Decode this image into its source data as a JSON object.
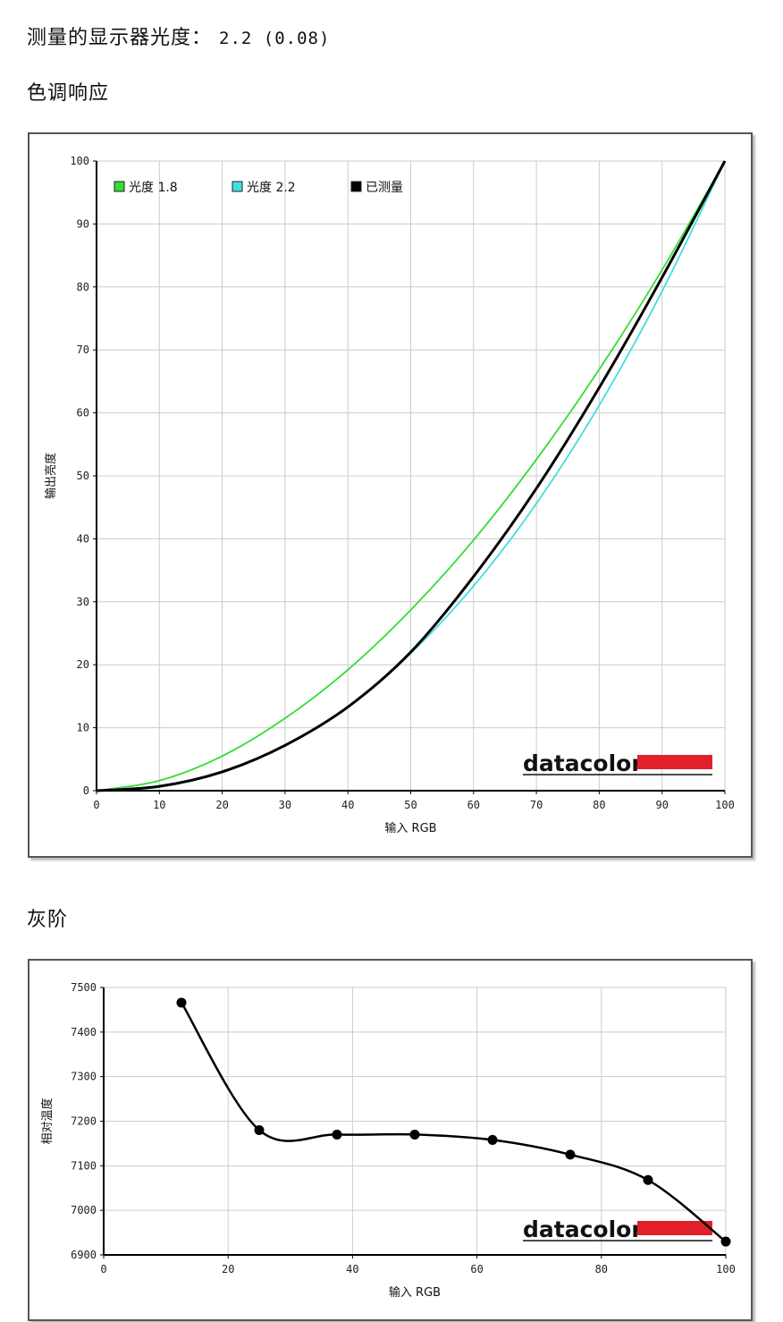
{
  "header": {
    "gamma_label": "测量的显示器光度：",
    "gamma_value": "2.2 (0.08)",
    "tone_title": "色调响应",
    "gray_title": "灰阶"
  },
  "colors": {
    "gamma18": "#33dd33",
    "gamma22": "#44dddd",
    "measured": "#000000",
    "grid": "#cccccc",
    "logo_bar": "#e2202a"
  },
  "chart_data": [
    {
      "type": "line",
      "xlabel": "输入 RGB",
      "ylabel": "输出亮度",
      "xlim": [
        0,
        100
      ],
      "ylim": [
        0,
        100
      ],
      "xticks": [
        0,
        10,
        20,
        30,
        40,
        50,
        60,
        70,
        80,
        90,
        100
      ],
      "yticks": [
        0,
        10,
        20,
        30,
        40,
        50,
        60,
        70,
        80,
        90,
        100
      ],
      "grid": true,
      "legend_position": "top-left",
      "logo_text": "datacolor",
      "series": [
        {
          "name": "光度 1.8",
          "color": "#33dd33",
          "x": [
            0,
            10,
            20,
            30,
            40,
            50,
            60,
            70,
            80,
            90,
            100
          ],
          "y": [
            0,
            1.6,
            5.5,
            11.5,
            19.2,
            28.7,
            39.8,
            52.6,
            66.9,
            82.7,
            100
          ]
        },
        {
          "name": "光度 2.2",
          "color": "#44dddd",
          "x": [
            0,
            10,
            20,
            30,
            40,
            50,
            60,
            70,
            80,
            90,
            100
          ],
          "y": [
            0,
            0.6,
            2.9,
            7.1,
            13.3,
            21.8,
            32.5,
            45.6,
            61.2,
            79.3,
            100
          ]
        },
        {
          "name": "已测量",
          "color": "#000000",
          "x": [
            0,
            10,
            20,
            30,
            40,
            50,
            60,
            70,
            80,
            90,
            100
          ],
          "y": [
            0,
            0.7,
            3.0,
            7.2,
            13.3,
            22.0,
            34.0,
            48.0,
            64.0,
            81.5,
            100
          ]
        }
      ]
    },
    {
      "type": "line",
      "xlabel": "输入 RGB",
      "ylabel": "相对温度",
      "xlim": [
        0,
        100
      ],
      "ylim": [
        6900,
        7500
      ],
      "xticks": [
        0,
        20,
        40,
        60,
        80,
        100
      ],
      "yticks": [
        6900,
        7000,
        7100,
        7200,
        7300,
        7400,
        7500
      ],
      "grid": true,
      "logo_text": "datacolor",
      "series": [
        {
          "color": "#000000",
          "x": [
            12.5,
            25,
            37.5,
            50,
            62.5,
            75,
            87.5,
            100
          ],
          "y": [
            7466,
            7180,
            7170,
            7170,
            7158,
            7125,
            7068,
            6930
          ]
        }
      ]
    }
  ]
}
